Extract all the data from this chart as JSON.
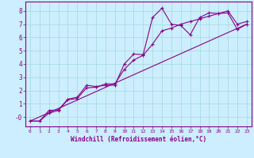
{
  "xlabel": "Windchill (Refroidissement éolien,°C)",
  "bg_color": "#cceeff",
  "line_color": "#880088",
  "grid_color": "#aadddd",
  "text_color": "#880088",
  "spine_color": "#880088",
  "xlim": [
    -0.5,
    23.5
  ],
  "ylim": [
    -0.7,
    8.7
  ],
  "xticks": [
    0,
    1,
    2,
    3,
    4,
    5,
    6,
    7,
    8,
    9,
    10,
    11,
    12,
    13,
    14,
    15,
    16,
    17,
    18,
    19,
    20,
    21,
    22,
    23
  ],
  "yticks": [
    0,
    1,
    2,
    3,
    4,
    5,
    6,
    7,
    8
  ],
  "ytick_labels": [
    "-0",
    "1",
    "2",
    "3",
    "4",
    "5",
    "6",
    "7",
    "8"
  ],
  "line1_x": [
    0,
    1,
    2,
    3,
    4,
    5,
    6,
    7,
    8,
    9,
    10,
    11,
    12,
    13,
    14,
    15,
    16,
    17,
    18,
    19,
    20,
    21,
    22,
    23
  ],
  "line1_y": [
    -0.3,
    -0.3,
    0.5,
    0.55,
    1.35,
    1.5,
    2.4,
    2.3,
    2.4,
    2.4,
    4.0,
    4.75,
    4.7,
    7.5,
    8.2,
    7.0,
    6.9,
    6.2,
    7.5,
    7.85,
    7.8,
    7.85,
    6.6,
    7.0
  ],
  "line2_x": [
    0,
    1,
    2,
    3,
    4,
    5,
    6,
    7,
    8,
    9,
    10,
    11,
    12,
    13,
    14,
    15,
    16,
    17,
    18,
    19,
    20,
    21,
    22,
    23
  ],
  "line2_y": [
    -0.3,
    -0.3,
    0.3,
    0.5,
    1.3,
    1.4,
    2.2,
    2.25,
    2.5,
    2.5,
    3.6,
    4.3,
    4.65,
    5.5,
    6.5,
    6.7,
    7.0,
    7.2,
    7.4,
    7.6,
    7.8,
    8.0,
    7.0,
    7.2
  ],
  "line3_x": [
    0,
    23
  ],
  "line3_y": [
    -0.3,
    7.0
  ]
}
